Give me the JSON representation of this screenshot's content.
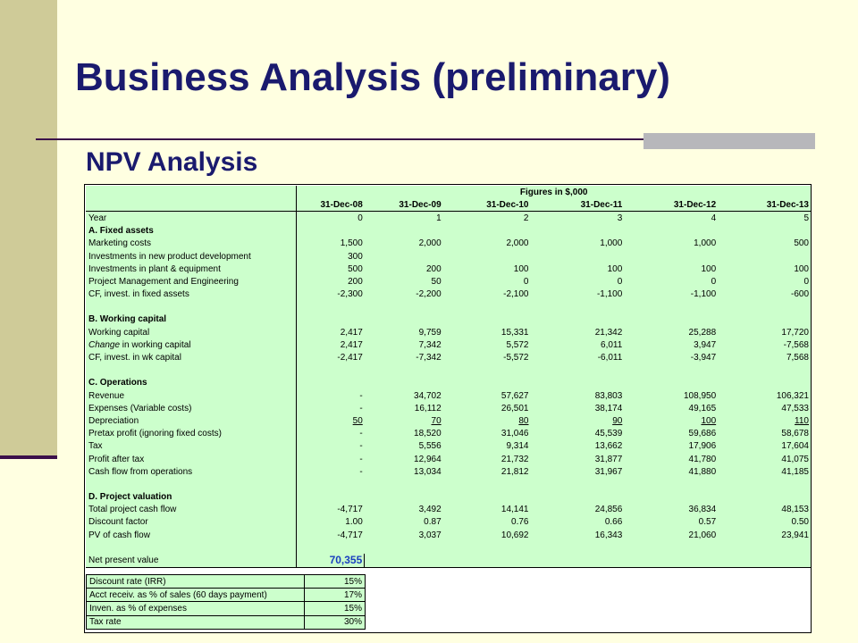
{
  "slide": {
    "title": "Business Analysis (preliminary)",
    "subtitle": "NPV Analysis"
  },
  "table": {
    "figures_note": "Figures in $,000",
    "dates": [
      "31-Dec-08",
      "31-Dec-09",
      "31-Dec-10",
      "31-Dec-11",
      "31-Dec-12",
      "31-Dec-13"
    ],
    "rows": {
      "year": {
        "label": "Year",
        "values": [
          "0",
          "1",
          "2",
          "3",
          "4",
          "5"
        ]
      },
      "sec_a": {
        "label": "A. Fixed assets"
      },
      "marketing": {
        "label": "Marketing costs",
        "values": [
          "1,500",
          "2,000",
          "2,000",
          "1,000",
          "1,000",
          "500"
        ]
      },
      "inv_npd": {
        "label": "Investments in new product development",
        "values": [
          "300",
          "",
          "",
          "",
          "",
          ""
        ]
      },
      "inv_plant": {
        "label": "Investments in plant & equipment",
        "values": [
          "500",
          "200",
          "100",
          "100",
          "100",
          "100"
        ]
      },
      "pm_eng": {
        "label": "Project Management and Engineering",
        "values": [
          "200",
          "50",
          "0",
          "0",
          "0",
          "0"
        ]
      },
      "cf_fixed": {
        "label": "CF, invest. in fixed assets",
        "values": [
          "-2,300",
          "-2,200",
          "-2,100",
          "-1,100",
          "-1,100",
          "-600"
        ]
      },
      "sec_b": {
        "label": "B. Working capital"
      },
      "wc": {
        "label": "Working capital",
        "values": [
          "2,417",
          "9,759",
          "15,331",
          "21,342",
          "25,288",
          "17,720"
        ]
      },
      "chg_wc": {
        "label_italic": "Change",
        "label_rest": " in working capital",
        "values": [
          "2,417",
          "7,342",
          "5,572",
          "6,011",
          "3,947",
          "-7,568"
        ]
      },
      "cf_wc": {
        "label": "CF, invest. in wk capital",
        "values": [
          "-2,417",
          "-7,342",
          "-5,572",
          "-6,011",
          "-3,947",
          "7,568"
        ]
      },
      "sec_c": {
        "label": "C. Operations"
      },
      "revenue": {
        "label": "Revenue",
        "values": [
          "-",
          "34,702",
          "57,627",
          "83,803",
          "108,950",
          "106,321"
        ]
      },
      "expenses": {
        "label": "Expenses (Variable costs)",
        "values": [
          "-",
          "16,112",
          "26,501",
          "38,174",
          "49,165",
          "47,533"
        ]
      },
      "depreciation": {
        "label": "Depreciation",
        "values": [
          "50",
          "70",
          "80",
          "90",
          "100",
          "110"
        ]
      },
      "pretax": {
        "label": "Pretax profit (ignoring fixed costs)",
        "values": [
          "-",
          "18,520",
          "31,046",
          "45,539",
          "59,686",
          "58,678"
        ]
      },
      "tax": {
        "label": "Tax",
        "values": [
          "-",
          "5,556",
          "9,314",
          "13,662",
          "17,906",
          "17,604"
        ]
      },
      "pat": {
        "label": "Profit after tax",
        "values": [
          "-",
          "12,964",
          "21,732",
          "31,877",
          "41,780",
          "41,075"
        ]
      },
      "cf_ops": {
        "label": "Cash flow from operations",
        "values": [
          "-",
          "13,034",
          "21,812",
          "31,967",
          "41,880",
          "41,185"
        ]
      },
      "sec_d": {
        "label": "D. Project valuation"
      },
      "total_cf": {
        "label": "Total project cash flow",
        "values": [
          "-4,717",
          "3,492",
          "14,141",
          "24,856",
          "36,834",
          "48,153"
        ]
      },
      "disc_factor": {
        "label": "Discount factor",
        "values": [
          "1.00",
          "0.87",
          "0.76",
          "0.66",
          "0.57",
          "0.50"
        ]
      },
      "pv_cf": {
        "label": "PV of cash flow",
        "values": [
          "-4,717",
          "3,037",
          "10,692",
          "16,343",
          "21,060",
          "23,941"
        ]
      },
      "npv": {
        "label": "Net present value",
        "value": "70,355"
      }
    }
  },
  "params": [
    {
      "label": "Discount rate (IRR)",
      "value": "15%"
    },
    {
      "label": "Acct receiv. as % of sales (60 days payment)",
      "value": "17%"
    },
    {
      "label": "Inven. as % of expenses",
      "value": "15%"
    },
    {
      "label": "Tax rate",
      "value": "30%"
    }
  ]
}
